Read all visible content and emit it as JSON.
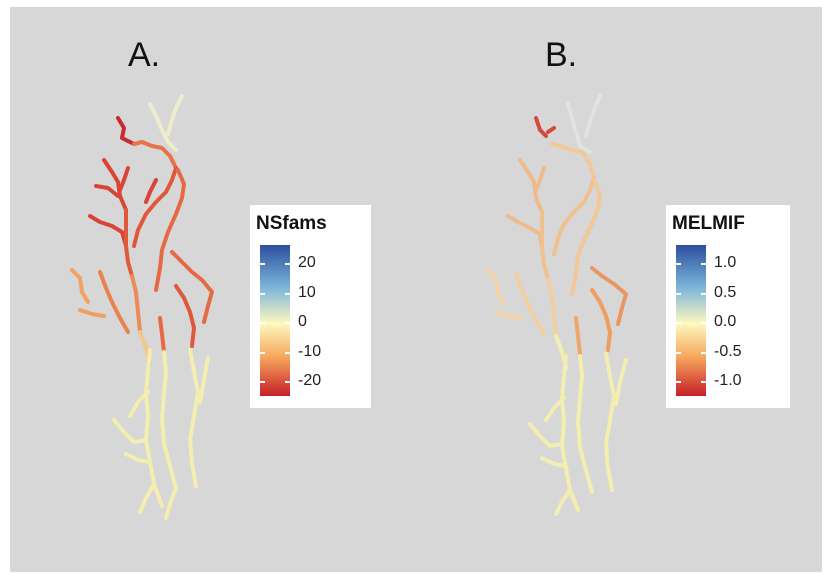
{
  "panels": [
    {
      "label": "A.",
      "legend": {
        "title": "NSfams",
        "ticks": [
          "20",
          "10",
          "0",
          "-10",
          "-20"
        ]
      }
    },
    {
      "label": "B.",
      "legend": {
        "title": "MELMIF",
        "ticks": [
          "1.0",
          "0.5",
          "0.0",
          "-0.5",
          "-1.0"
        ]
      }
    }
  ],
  "colors": {
    "background": "#d7d7d7",
    "scale": [
      "#2c4fa0",
      "#7ab6d9",
      "#fdf8c0",
      "#f6a85c",
      "#c81e2a"
    ]
  },
  "icons": [
    "river-network-map-a",
    "river-network-map-b",
    "color-scale-bar-a",
    "color-scale-bar-b"
  ]
}
